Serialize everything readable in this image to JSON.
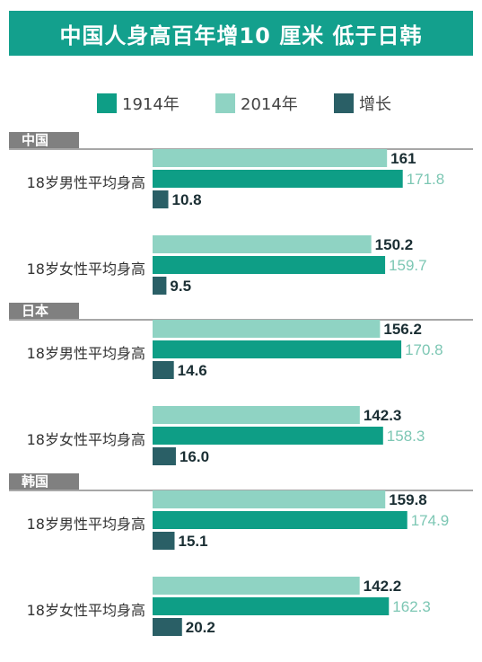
{
  "title": "中国人身高百年增10 厘米 低于日韩",
  "colors": {
    "title_bg": "#13a08d",
    "bar_1914": "#0e9e86",
    "bar_2014": "#8fd3c3",
    "bar_growth": "#2a5f66",
    "label_2014_text": "#7dc7b4",
    "label_dark_text": "#1a2e33",
    "group_tab": "#808080"
  },
  "legend": [
    {
      "label": "1914年",
      "color_key": "bar_1914"
    },
    {
      "label": "2014年",
      "color_key": "bar_2014"
    },
    {
      "label": "增长",
      "color_key": "bar_growth"
    }
  ],
  "chart_data": {
    "type": "bar",
    "orientation": "horizontal",
    "title": "中国人身高百年增10 厘米 低于日韩",
    "groups": [
      {
        "name": "中国",
        "rows": [
          {
            "label": "18岁男性平均身高",
            "values": {
              "1914年": 161,
              "2014年": 171.8,
              "增长": 10.8
            },
            "display": {
              "1914年": "161",
              "2014年": "171.8",
              "增长": "10.8"
            }
          },
          {
            "label": "18岁女性平均身高",
            "values": {
              "1914年": 150.2,
              "2014年": 159.7,
              "增长": 9.5
            },
            "display": {
              "1914年": "150.2",
              "2014年": "159.7",
              "增长": "9.5"
            }
          }
        ]
      },
      {
        "name": "日本",
        "rows": [
          {
            "label": "18岁男性平均身高",
            "values": {
              "1914年": 156.2,
              "2014年": 170.8,
              "增长": 14.6
            },
            "display": {
              "1914年": "156.2",
              "2014年": "170.8",
              "增长": "14.6"
            }
          },
          {
            "label": "18岁女性平均身高",
            "values": {
              "1914年": 142.3,
              "2014年": 158.3,
              "增长": 16.0
            },
            "display": {
              "1914年": "142.3",
              "2014年": "158.3",
              "增长": "16.0"
            }
          }
        ]
      },
      {
        "name": "韩国",
        "rows": [
          {
            "label": "18岁男性平均身高",
            "values": {
              "1914年": 159.8,
              "2014年": 174.9,
              "增长": 15.1
            },
            "display": {
              "1914年": "159.8",
              "2014年": "174.9",
              "增长": "15.1"
            }
          },
          {
            "label": "18岁女性平均身高",
            "values": {
              "1914年": 142.2,
              "2014年": 162.3,
              "增长": 20.2
            },
            "display": {
              "1914年": "142.2",
              "2014年": "162.3",
              "增长": "20.2"
            }
          }
        ]
      }
    ],
    "series": [
      {
        "name": "1914年",
        "color_key": "bar_1914"
      },
      {
        "name": "2014年",
        "color_key": "bar_2014"
      },
      {
        "name": "增长",
        "color_key": "bar_growth"
      }
    ],
    "value_range": [
      0,
      180
    ],
    "legend_position": "top",
    "grid": false
  }
}
